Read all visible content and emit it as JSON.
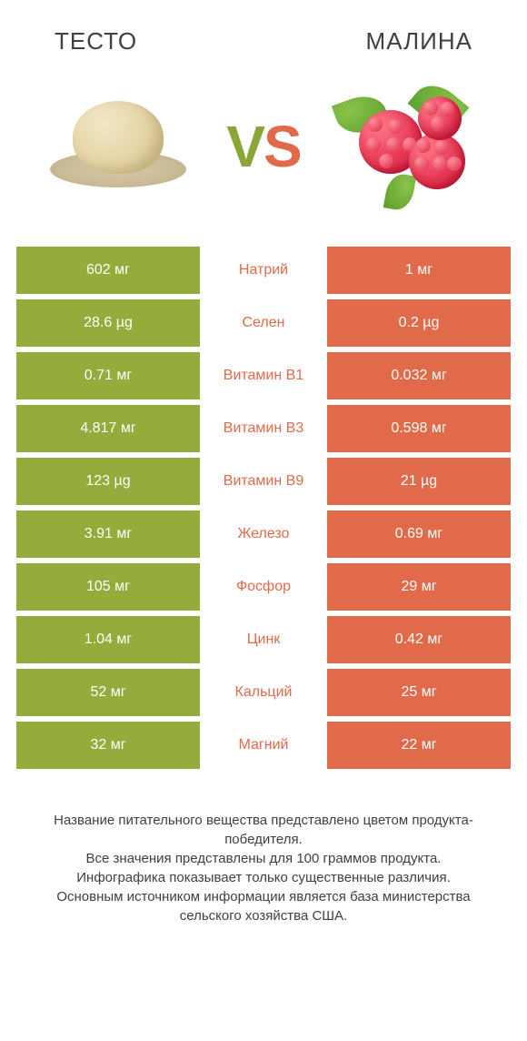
{
  "colors": {
    "left_bg": "#93ac3c",
    "right_bg": "#e06a4a",
    "left_text": "#ffffff",
    "right_text": "#ffffff",
    "label_left_color": "#e06a4a",
    "label_right_color": "#93ac3c",
    "page_bg": "#ffffff",
    "body_text": "#404040"
  },
  "header": {
    "left_title": "ТЕСТО",
    "right_title": "МАЛИНА",
    "vs": {
      "v": "V",
      "s": "S"
    }
  },
  "rows": [
    {
      "left": "602 мг",
      "label": "Натрий",
      "right": "1 мг",
      "winner": "left"
    },
    {
      "left": "28.6 µg",
      "label": "Селен",
      "right": "0.2 µg",
      "winner": "left"
    },
    {
      "left": "0.71 мг",
      "label": "Витамин B1",
      "right": "0.032 мг",
      "winner": "left"
    },
    {
      "left": "4.817 мг",
      "label": "Витамин B3",
      "right": "0.598 мг",
      "winner": "left"
    },
    {
      "left": "123 µg",
      "label": "Витамин B9",
      "right": "21 µg",
      "winner": "left"
    },
    {
      "left": "3.91 мг",
      "label": "Железо",
      "right": "0.69 мг",
      "winner": "left"
    },
    {
      "left": "105 мг",
      "label": "Фосфор",
      "right": "29 мг",
      "winner": "left"
    },
    {
      "left": "1.04 мг",
      "label": "Цинк",
      "right": "0.42 мг",
      "winner": "left"
    },
    {
      "left": "52 мг",
      "label": "Кальций",
      "right": "25 мг",
      "winner": "left"
    },
    {
      "left": "32 мг",
      "label": "Магний",
      "right": "22 мг",
      "winner": "left"
    }
  ],
  "footer_lines": [
    "Название питательного вещества представлено цветом продукта-победителя.",
    "Все значения представлены для 100 граммов продукта.",
    "Инфографика показывает только существенные различия.",
    "Основным источником информации является база министерства сельского хозяйства США."
  ]
}
